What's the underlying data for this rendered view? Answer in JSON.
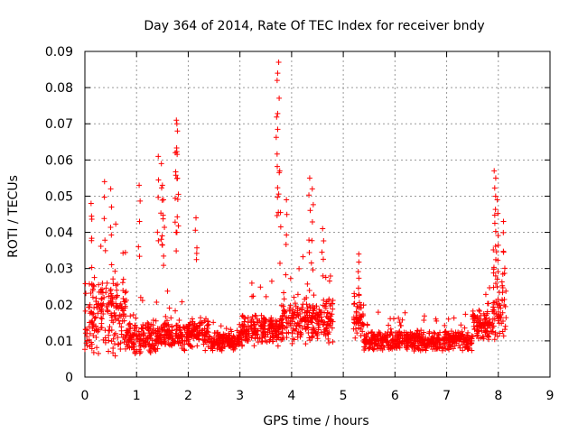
{
  "chart_data": {
    "type": "scatter",
    "title": "Day 364 of 2014, Rate Of TEC Index for receiver bndy",
    "xlabel": "GPS time / hours",
    "ylabel": "ROTI / TECUs",
    "xlim": [
      0,
      9
    ],
    "ylim": [
      0,
      0.09
    ],
    "x_ticks": [
      0,
      1,
      2,
      3,
      4,
      5,
      6,
      7,
      8,
      9
    ],
    "y_ticks": [
      0,
      0.01,
      0.02,
      0.03,
      0.04,
      0.05,
      0.06,
      0.07,
      0.08,
      0.09
    ],
    "x_tick_labels": [
      "0",
      "1",
      "2",
      "3",
      "4",
      "5",
      "6",
      "7",
      "8",
      "9"
    ],
    "y_tick_labels": [
      "0",
      "0.01",
      "0.02",
      "0.03",
      "0.04",
      "0.05",
      "0.06",
      "0.07",
      "0.08",
      "0.09"
    ],
    "grid": true,
    "marker": "+",
    "color": "#ff0000",
    "series": [
      {
        "name": "ROTI",
        "segments": [
          {
            "x_start": 0.0,
            "x_end": 0.25,
            "baseline": 0.016,
            "spread": 0.012
          },
          {
            "x_start": 0.25,
            "x_end": 0.8,
            "baseline": 0.017,
            "spread": 0.012
          },
          {
            "x_start": 0.8,
            "x_end": 1.5,
            "baseline": 0.011,
            "spread": 0.005
          },
          {
            "x_start": 1.5,
            "x_end": 2.4,
            "baseline": 0.012,
            "spread": 0.005
          },
          {
            "x_start": 2.4,
            "x_end": 3.0,
            "baseline": 0.01,
            "spread": 0.003
          },
          {
            "x_start": 3.0,
            "x_end": 3.8,
            "baseline": 0.013,
            "spread": 0.005
          },
          {
            "x_start": 3.8,
            "x_end": 4.8,
            "baseline": 0.016,
            "spread": 0.007
          },
          {
            "x_start": 5.2,
            "x_end": 5.4,
            "baseline": 0.016,
            "spread": 0.008
          },
          {
            "x_start": 5.4,
            "x_end": 6.0,
            "baseline": 0.01,
            "spread": 0.003
          },
          {
            "x_start": 6.0,
            "x_end": 7.5,
            "baseline": 0.01,
            "spread": 0.003
          },
          {
            "x_start": 7.5,
            "x_end": 7.9,
            "baseline": 0.014,
            "spread": 0.005
          },
          {
            "x_start": 7.9,
            "x_end": 8.15,
            "baseline": 0.02,
            "spread": 0.012
          }
        ],
        "peaks": [
          {
            "x": 0.12,
            "y": 0.048
          },
          {
            "x": 0.38,
            "y": 0.054
          },
          {
            "x": 0.5,
            "y": 0.052
          },
          {
            "x": 1.05,
            "y": 0.053
          },
          {
            "x": 1.42,
            "y": 0.061
          },
          {
            "x": 1.48,
            "y": 0.059
          },
          {
            "x": 1.5,
            "y": 0.053
          },
          {
            "x": 1.52,
            "y": 0.049
          },
          {
            "x": 1.77,
            "y": 0.071
          },
          {
            "x": 1.78,
            "y": 0.07
          },
          {
            "x": 1.79,
            "y": 0.068
          },
          {
            "x": 1.75,
            "y": 0.062
          },
          {
            "x": 2.15,
            "y": 0.044
          },
          {
            "x": 3.75,
            "y": 0.087
          },
          {
            "x": 3.73,
            "y": 0.084
          },
          {
            "x": 3.72,
            "y": 0.082
          },
          {
            "x": 3.77,
            "y": 0.057
          },
          {
            "x": 3.9,
            "y": 0.049
          },
          {
            "x": 4.35,
            "y": 0.055
          },
          {
            "x": 4.4,
            "y": 0.052
          },
          {
            "x": 4.6,
            "y": 0.041
          },
          {
            "x": 5.3,
            "y": 0.034
          },
          {
            "x": 7.92,
            "y": 0.057
          },
          {
            "x": 7.95,
            "y": 0.055
          },
          {
            "x": 7.98,
            "y": 0.049
          },
          {
            "x": 8.1,
            "y": 0.043
          }
        ]
      }
    ]
  }
}
